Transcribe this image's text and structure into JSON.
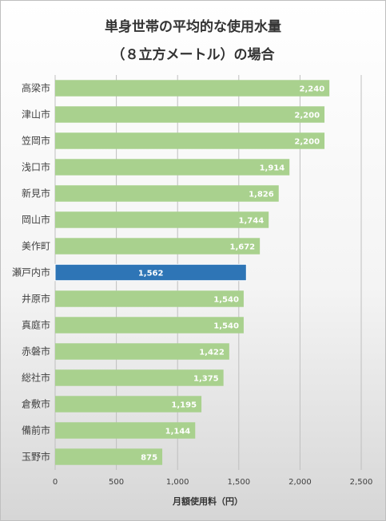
{
  "chart_data": {
    "type": "bar",
    "orientation": "horizontal",
    "title_line1": "単身世帯の平均的な使用水量",
    "title_line2": "（８立方メートル）の場合",
    "xlabel": "月額使用料（円）",
    "ylabel": "",
    "xlim": [
      0,
      2500
    ],
    "xticks": [
      0,
      500,
      1000,
      1500,
      2000,
      2500
    ],
    "xtick_labels": [
      "0",
      "500",
      "1,000",
      "1,500",
      "2,000",
      "2,500"
    ],
    "grid": "vertical",
    "legend": "none",
    "categories": [
      "高梁市",
      "津山市",
      "笠岡市",
      "浅口市",
      "新見市",
      "岡山市",
      "美作町",
      "瀬戸内市",
      "井原市",
      "真庭市",
      "赤磐市",
      "総社市",
      "倉敷市",
      "備前市",
      "玉野市"
    ],
    "values": [
      2240,
      2200,
      2200,
      1914,
      1826,
      1744,
      1672,
      1562,
      1540,
      1540,
      1422,
      1375,
      1195,
      1144,
      875
    ],
    "value_labels": [
      "2,240",
      "2,200",
      "2,200",
      "1,914",
      "1,826",
      "1,744",
      "1,672",
      "1,562",
      "1,540",
      "1,540",
      "1,422",
      "1,375",
      "1,195",
      "1,144",
      "875"
    ],
    "highlight_index": 7,
    "colors": {
      "bar": "#a9d18e",
      "highlight": "#2e75b6",
      "grid": "#bfbfbf"
    }
  }
}
